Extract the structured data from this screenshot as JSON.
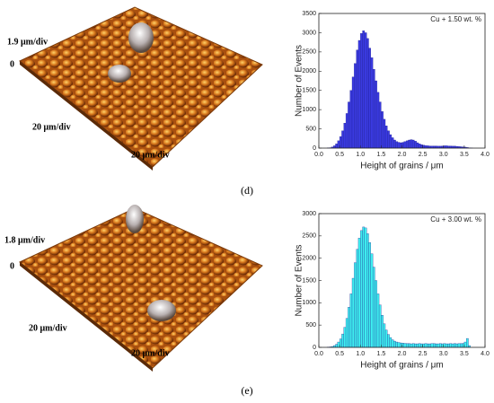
{
  "chart_data": [
    {
      "type": "histogram",
      "annotation": "Cu + 1.50 wt. %",
      "xlabel": "Height of grains / μm",
      "ylabel": "Number of Events",
      "color": "#3a3ae0",
      "bins": [
        0,
        0.05,
        0.1,
        0.15,
        0.2,
        0.25,
        0.3,
        0.35,
        0.4,
        0.45,
        0.5,
        0.55,
        0.6,
        0.65,
        0.7,
        0.75,
        0.8,
        0.85,
        0.9,
        0.95,
        1.0,
        1.05,
        1.1,
        1.15,
        1.2,
        1.25,
        1.3,
        1.35,
        1.4,
        1.45,
        1.5,
        1.55,
        1.6,
        1.65,
        1.7,
        1.75,
        1.8,
        1.85,
        1.9,
        1.95,
        2.0,
        2.05,
        2.1,
        2.15,
        2.2,
        2.25,
        2.3,
        2.35,
        2.4,
        2.45,
        2.5,
        2.55,
        2.6,
        2.65,
        2.7,
        2.75,
        2.8,
        2.85,
        2.9,
        2.95,
        3.0,
        3.05,
        3.1,
        3.15,
        3.2,
        3.25,
        3.3,
        3.35,
        3.4,
        3.45,
        3.5,
        3.55,
        3.6,
        3.65,
        3.7,
        3.75,
        3.8,
        3.85,
        3.9,
        3.95,
        4.0
      ],
      "values": [
        0,
        0,
        0,
        0,
        5,
        10,
        30,
        60,
        110,
        190,
        300,
        450,
        650,
        900,
        1200,
        1500,
        1850,
        2200,
        2550,
        2800,
        2980,
        3050,
        3000,
        2850,
        2600,
        2350,
        2050,
        1750,
        1450,
        1200,
        950,
        750,
        580,
        450,
        350,
        270,
        210,
        170,
        150,
        140,
        150,
        170,
        190,
        210,
        220,
        210,
        180,
        140,
        110,
        90,
        75,
        65,
        60,
        55,
        55,
        55,
        55,
        50,
        50,
        55,
        60,
        60,
        55,
        55,
        50,
        50,
        45,
        40,
        35,
        30,
        25,
        15,
        8,
        3,
        0,
        0,
        0,
        0,
        0,
        0
      ],
      "xlim": [
        0,
        4
      ],
      "xticks": [
        {
          "value": 0,
          "label": "0.0"
        },
        0.5,
        {
          "value": 1,
          "label": "1.0"
        },
        1.5,
        {
          "value": 2,
          "label": "2.0"
        },
        2.5,
        {
          "value": 3,
          "label": "3.0"
        },
        3.5,
        {
          "value": 4,
          "label": "4.0"
        }
      ],
      "ylim": [
        0,
        3500
      ],
      "yticks": [
        0,
        500,
        1000,
        1500,
        2000,
        2500,
        3000,
        3500
      ]
    },
    {
      "type": "histogram",
      "annotation": "Cu + 3.00 wt. %",
      "xlabel": "Height of grains / μm",
      "ylabel": "Number of Events",
      "color": "#3ef0f0",
      "bins": [
        0,
        0.05,
        0.1,
        0.15,
        0.2,
        0.25,
        0.3,
        0.35,
        0.4,
        0.45,
        0.5,
        0.55,
        0.6,
        0.65,
        0.7,
        0.75,
        0.8,
        0.85,
        0.9,
        0.95,
        1.0,
        1.05,
        1.1,
        1.15,
        1.2,
        1.25,
        1.3,
        1.35,
        1.4,
        1.45,
        1.5,
        1.55,
        1.6,
        1.65,
        1.7,
        1.75,
        1.8,
        1.85,
        1.9,
        1.95,
        2.0,
        2.05,
        2.1,
        2.15,
        2.2,
        2.25,
        2.3,
        2.35,
        2.4,
        2.45,
        2.5,
        2.55,
        2.6,
        2.65,
        2.7,
        2.75,
        2.8,
        2.85,
        2.9,
        2.95,
        3.0,
        3.05,
        3.1,
        3.15,
        3.2,
        3.25,
        3.3,
        3.35,
        3.4,
        3.45,
        3.5,
        3.55,
        3.6,
        3.65,
        3.7,
        3.75,
        3.8,
        3.85,
        3.9,
        3.95,
        4.0
      ],
      "values": [
        0,
        0,
        0,
        0,
        5,
        10,
        20,
        40,
        70,
        120,
        190,
        300,
        450,
        650,
        900,
        1200,
        1550,
        1900,
        2200,
        2450,
        2620,
        2700,
        2680,
        2550,
        2350,
        2100,
        1800,
        1500,
        1200,
        950,
        720,
        530,
        390,
        290,
        220,
        170,
        140,
        120,
        110,
        100,
        95,
        90,
        85,
        85,
        80,
        85,
        80,
        80,
        85,
        80,
        80,
        85,
        80,
        80,
        85,
        85,
        80,
        80,
        85,
        80,
        85,
        80,
        80,
        85,
        80,
        85,
        80,
        85,
        85,
        90,
        120,
        200,
        40,
        0,
        0,
        0,
        0,
        0,
        0,
        0
      ],
      "xlim": [
        0,
        4
      ],
      "xticks": [
        {
          "value": 0,
          "label": "0.0"
        },
        0.5,
        {
          "value": 1,
          "label": "1.0"
        },
        1.5,
        {
          "value": 2,
          "label": "2.0"
        },
        2.5,
        {
          "value": 3,
          "label": "3.0"
        },
        3.5,
        {
          "value": 4,
          "label": "4.0"
        }
      ],
      "ylim": [
        0,
        3000
      ],
      "yticks": [
        0,
        500,
        1000,
        1500,
        2000,
        2500,
        3000
      ]
    }
  ],
  "panels": [
    {
      "label": "(d)",
      "z_scale": "1.9 μm/div",
      "z_zero": "0",
      "x_scale": "20 μm/div",
      "y_scale": "20 μm/div"
    },
    {
      "label": "(e)",
      "z_scale": "1.8 μm/div",
      "z_zero": "0",
      "x_scale": "20 μm/div",
      "y_scale": "20 μm/div"
    }
  ]
}
